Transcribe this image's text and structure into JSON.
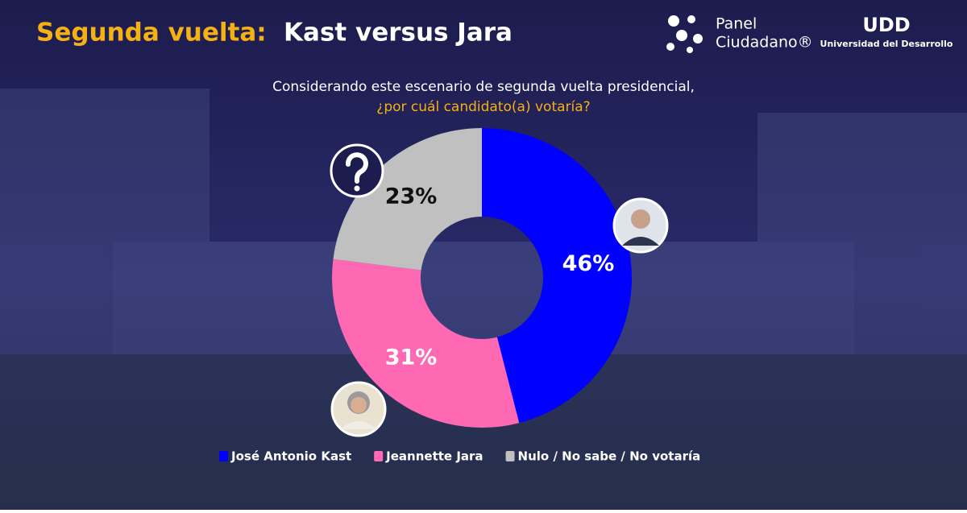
{
  "branding": {
    "panel": [
      "Panel",
      "Ciudadano®"
    ],
    "udd": "UDD",
    "university": "Universidad del Desarrollo"
  },
  "chart_data": {
    "type": "pie",
    "donut": true,
    "title": {
      "lead": "Segunda vuelta:",
      "main": "Kast versus Jara"
    },
    "subtitle": [
      "Considerando este escenario de segunda vuelta presidencial,",
      "¿por cuál candidato(a) votaría?"
    ],
    "categories": [
      "José Antonio Kast",
      "Jeannette Jara",
      "Nulo / No sabe / No votaría"
    ],
    "values": [
      46,
      31,
      23
    ],
    "value_labels": [
      "46%",
      "31%",
      "23%"
    ],
    "colors": [
      "#0000ff",
      "#ff69b4",
      "#c0c0c0"
    ],
    "label_colors": [
      "#ffffff",
      "#ffffff",
      "#111111"
    ],
    "legend": "bottom"
  }
}
